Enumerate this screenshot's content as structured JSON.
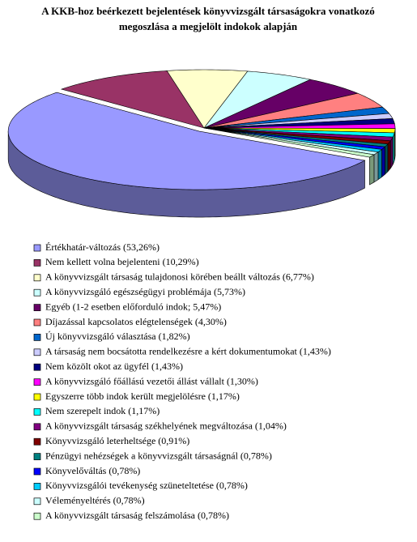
{
  "chart_data": {
    "type": "pie3d",
    "title": "A KKB-hoz beérkezett bejelentések könyvvizsgált társaságokra vonatkozó megoszlása a megjelölt indokok alapján",
    "categories": [
      "Értékhatár-változás (53,26%)",
      "Nem kellett volna bejelenteni (10,29%)",
      "A könyvvizsgált társaság tulajdonosi körében beállt változás (6,77%)",
      "A könyvvizsgáló egészségügyi problémája (5,73%)",
      "Egyéb (1-2 esetben előforduló indok; 5,47%)",
      "Díjazással kapcsolatos elégtelenségek (4,30%)",
      "Új könyvvizsgáló választása (1,82%)",
      "A társaság nem bocsátotta rendelkezésre a kért dokumentumokat (1,43%)",
      "Nem közölt okot az ügyfél (1,43%)",
      "A könyvvizsgáló főállású vezetői állást vállalt (1,30%)",
      "Egyszerre több indok került megjelölésre (1,17%)",
      "Nem szerepelt indok (1,17%)",
      "A könyvvizsgált társaság székhelyének megváltozása (1,04%)",
      "Könyvvizsgáló leterheltsége (0,91%)",
      "Pénzügyi nehézségek a könyvvizsgált társaságnál (0,78%)",
      "Könyvelőváltás (0,78%)",
      "Könyvvizsgálói tevékenység szüneteltetése (0,78%)",
      "Véleményeltérés (0,78%)",
      "A könyvvizsgált társaság felszámolása (0,78%)"
    ],
    "values": [
      53.26,
      10.29,
      6.77,
      5.73,
      5.47,
      4.3,
      1.82,
      1.43,
      1.43,
      1.3,
      1.17,
      1.17,
      1.04,
      0.91,
      0.78,
      0.78,
      0.78,
      0.78,
      0.78
    ],
    "colors": [
      "#9999ff",
      "#993366",
      "#ffffcc",
      "#ccffff",
      "#660066",
      "#ff8080",
      "#0066cc",
      "#ccccff",
      "#000080",
      "#ff00ff",
      "#ffff00",
      "#00ffff",
      "#800080",
      "#800000",
      "#008080",
      "#0000ff",
      "#00ccff",
      "#ccffff",
      "#ccffcc"
    ],
    "legend": "bottom"
  }
}
